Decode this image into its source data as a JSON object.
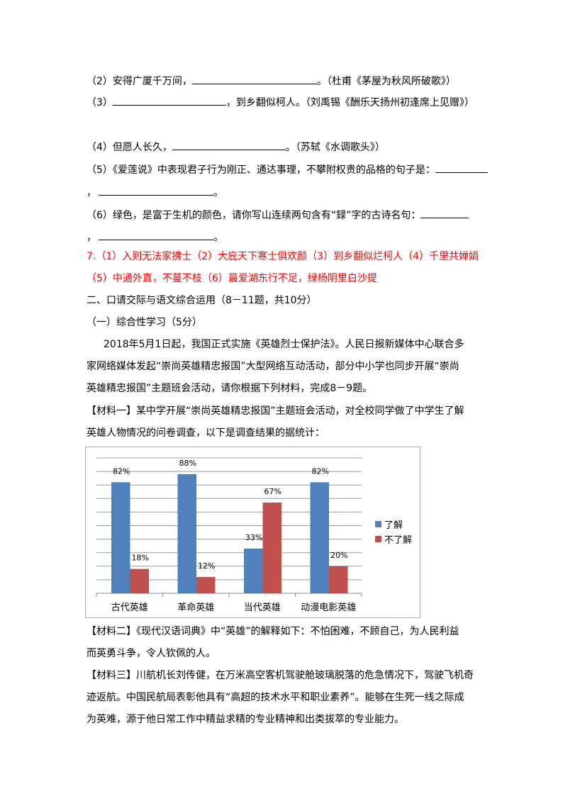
{
  "questions": {
    "q2": {
      "pre": "（2）安得广厦千万间，",
      "post": "。（杜甫《茅屋为秋风所破歌》）"
    },
    "q3": {
      "pre": "（3）",
      "post": "，到乡翻似柯人。（刘禹锡《酬乐天扬州初逢席上见赠》）"
    },
    "q4": {
      "pre": "（4）但愿人长久，",
      "post": "。（苏轼《水调歌头》）"
    },
    "q5": {
      "pre": "（5）《爱莲说》中表现君子行为刚正、通达事理，不攀附权贵的品格的句子是：",
      "line2_pre": "，",
      "line2_post": "。"
    },
    "q6": {
      "pre": "（6）绿色，是富于生机的颜色，请你写山连续两句含有“録”字的古诗名句：",
      "line2_pre": "，",
      "line2_post": "。"
    }
  },
  "answers": {
    "line1": "7.（1）入则无法家拂士（2）大庇天下寒士俱欢颜（3）到乡翻似烂柯人（4）千里共婵娟",
    "line2": "（5）中通外直，不蔓不枝（6）最爱湖东行不足，绿杨阴里白沙提",
    "color": "#ff0000"
  },
  "section": {
    "heading": "二、口请交际与语文综合运用（8－11题，共10分）",
    "sub": "（一）综合性学习（5分）",
    "intro": [
      "2018年5月1日起，我国正式实施《英雄烈士保护法》。人民日报新媒体中心联合多",
      "家网络媒体发起“崇尚英雄精忠报国”大型网络互动活动，部分中小学也同步开展“崇尚",
      "英雄精忠报国”主题班会活动，请你根据下列材料，完成8－9题。"
    ],
    "material1": [
      "【材料一】某中学开展“崇尚英雄精忠报国”主题班会活动，对全校同学做了中学生了解",
      "英雄人物情况的问卷调查，以下是调查结果的据统计："
    ],
    "material2": [
      "【材料二】《现代汉语词典》中“英雄”的解释如下：不怕困难，不顾自己，为人民利益",
      "而英勇斗争，令人钦佩的人。"
    ],
    "material3": [
      "【材料三】川航机长刘传健，在万米高空客机驾驶舱玻璃脱落的危急情况下，驾驶飞机奇",
      "迹返航。中国民航局表彰他具有“高超的技术水平和职业素养”。能够在生死一线之际成",
      "为英难，源于他日常工作中精益求精的专业精神和出类拔萃的专业能力。"
    ]
  },
  "chart_data": {
    "type": "bar",
    "categories": [
      "古代英雄",
      "革命英雄",
      "当代英雄",
      "动漫电影英雄"
    ],
    "series": [
      {
        "name": "了解",
        "values": [
          82,
          88,
          33,
          82
        ],
        "labels": [
          "82%",
          "88%",
          "33%",
          "82%"
        ],
        "color": "#4f81bd"
      },
      {
        "name": "不了解",
        "values": [
          18,
          12,
          67,
          20
        ],
        "labels": [
          "18%",
          "12%",
          "67%",
          "20%"
        ],
        "color": "#c0504d"
      }
    ],
    "ylim": [
      0,
      100
    ],
    "grid": true,
    "legend": "right"
  }
}
